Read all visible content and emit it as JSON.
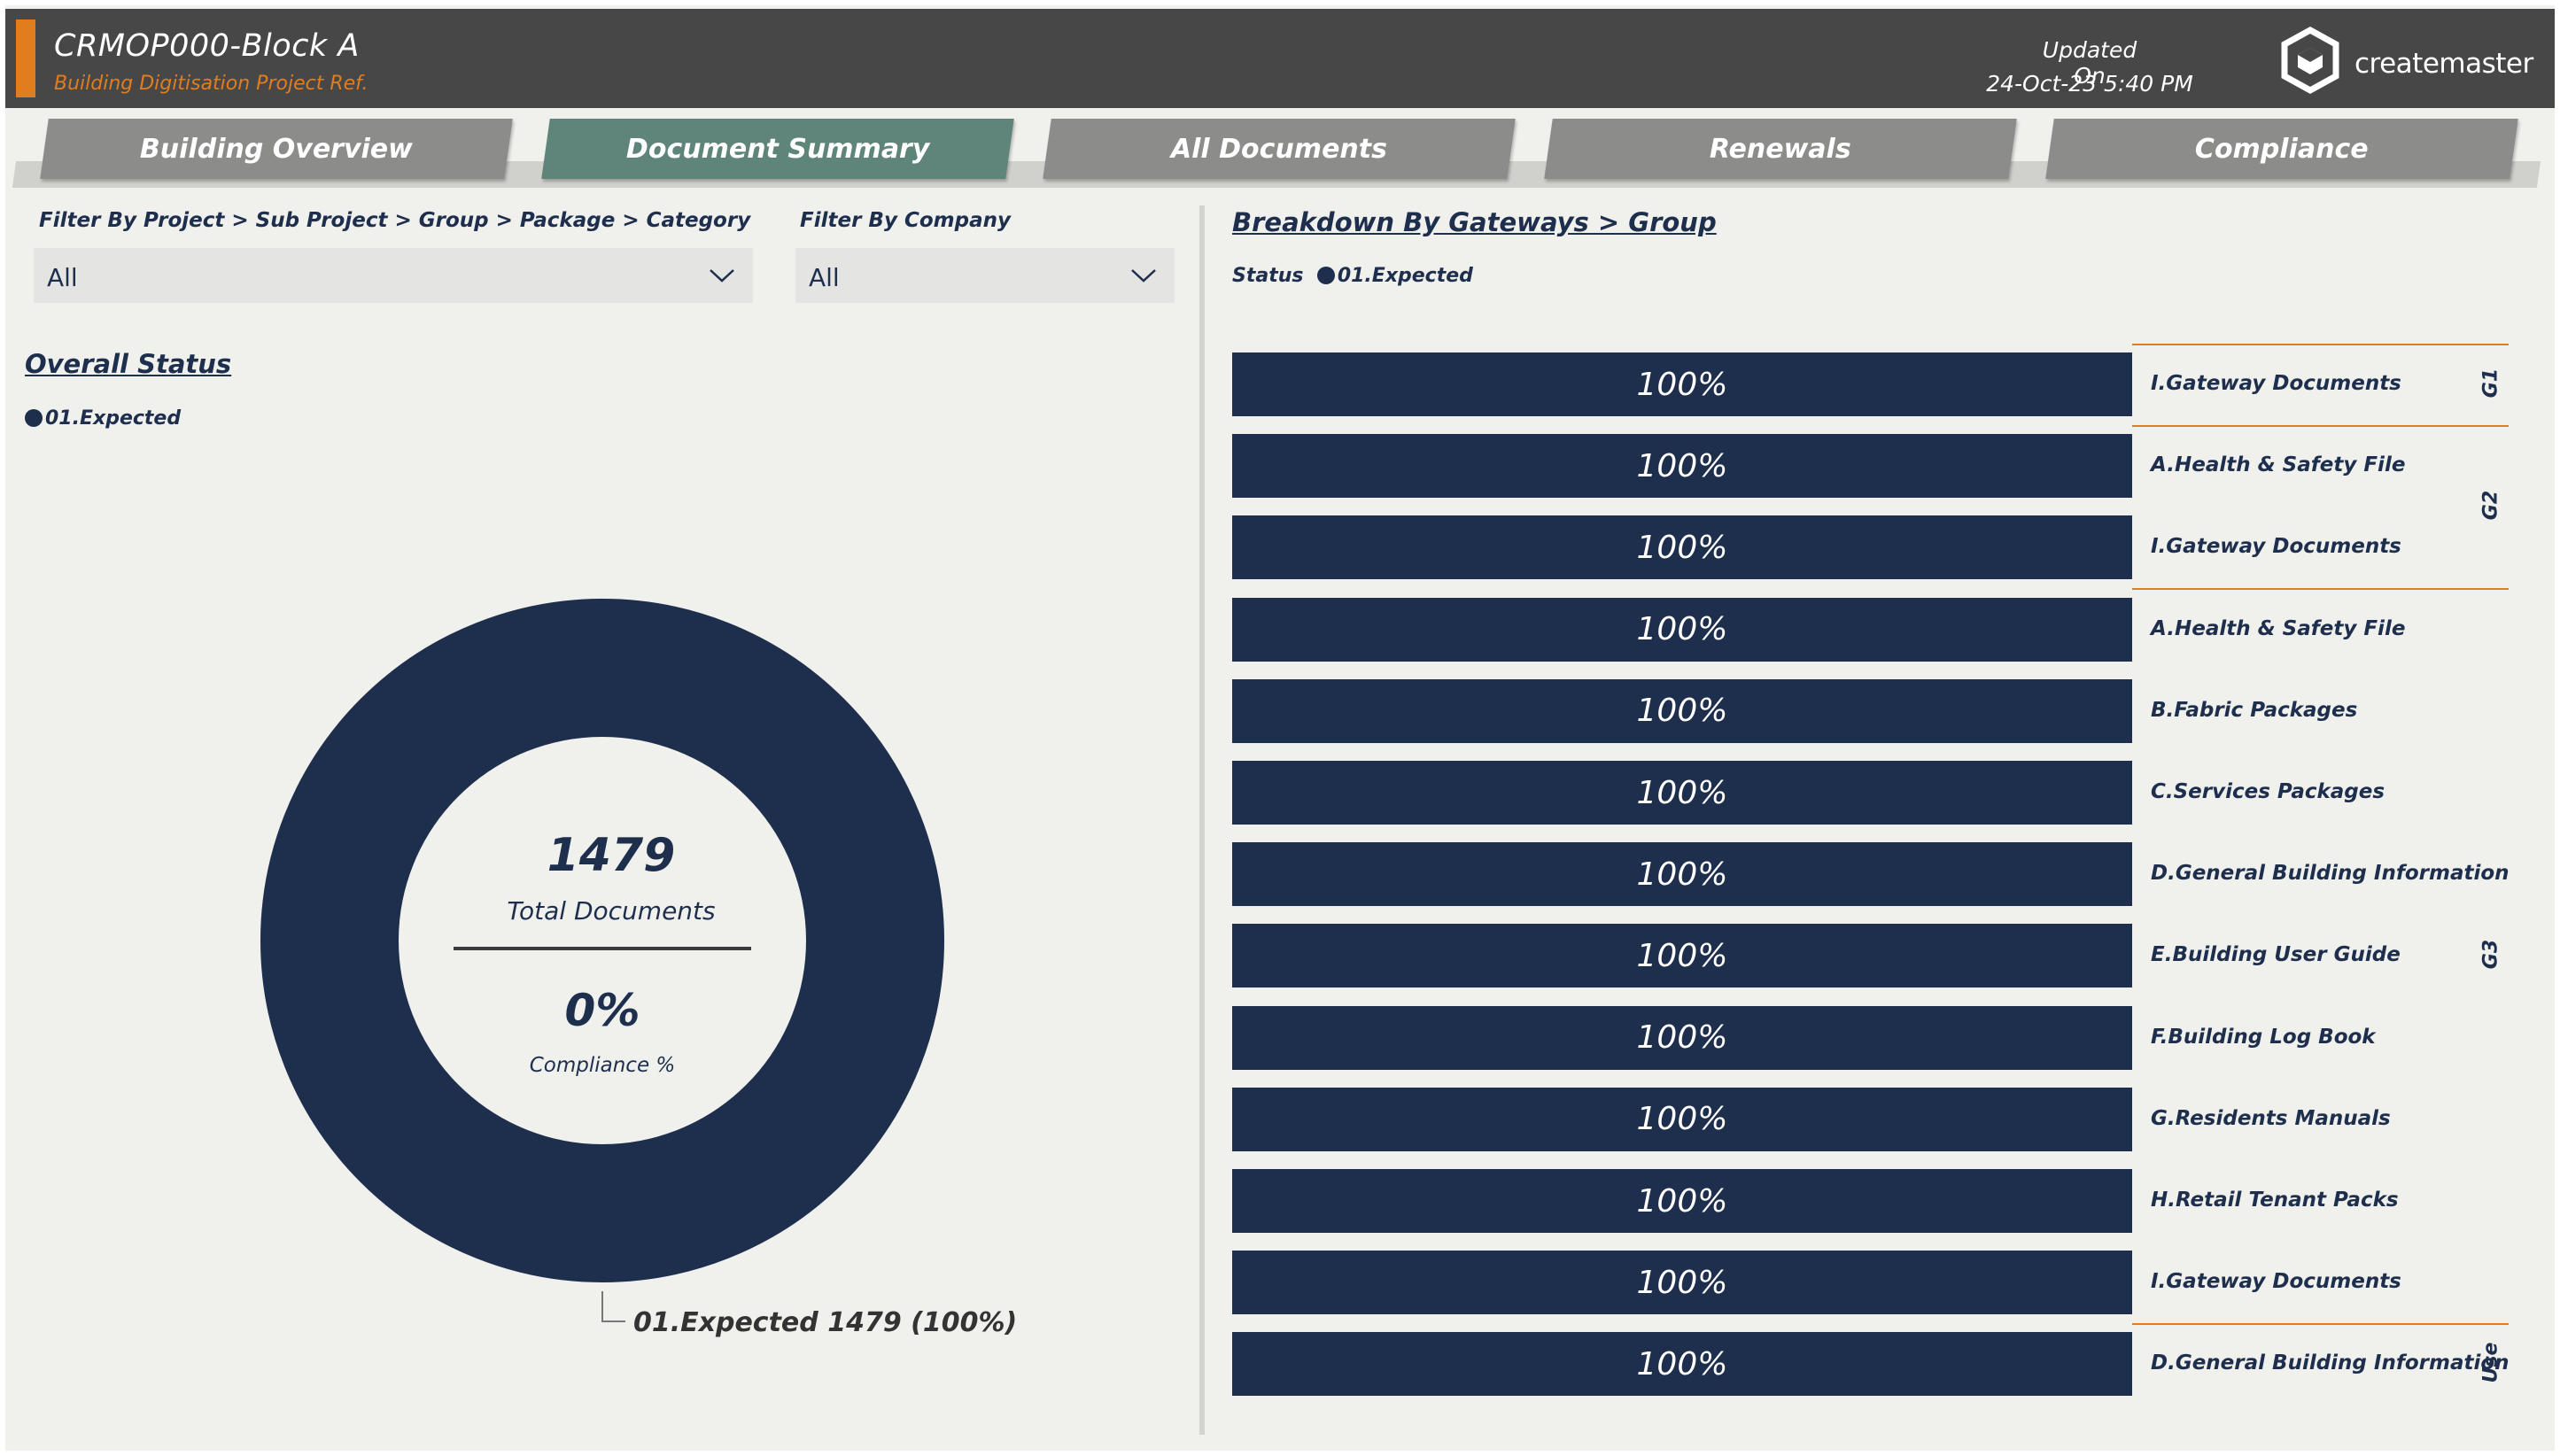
{
  "header": {
    "title": "CRMOP000-Block A",
    "subtitle": "Building Digitisation Project Ref.",
    "updated_label": "Updated On",
    "updated_value": "24-Oct-23 5:40 PM",
    "brand_light": "create",
    "brand_bold": "master",
    "colors": {
      "header_bg": "#474747",
      "accent": "#e07d1f"
    }
  },
  "tabs": [
    {
      "label": "Building Overview",
      "active": false
    },
    {
      "label": "Document Summary",
      "active": true
    },
    {
      "label": "All Documents",
      "active": false
    },
    {
      "label": "Renewals",
      "active": false
    },
    {
      "label": "Compliance",
      "active": false
    }
  ],
  "filters": {
    "project": {
      "label": "Filter By Project > Sub Project > Group > Package > Category",
      "value": "All"
    },
    "company": {
      "label": "Filter By Company",
      "value": "All"
    }
  },
  "overall_status": {
    "heading": "Overall Status",
    "legend_item": "01.Expected",
    "total": "1479",
    "total_label": "Total Documents",
    "compliance": "0%",
    "compliance_label": "Compliance %",
    "callout": "01.Expected 1479 (100%)",
    "color": "#1e2e4d"
  },
  "breakdown": {
    "heading": "Breakdown By Gateways > Group",
    "legend_title": "Status",
    "legend_item": "01.Expected",
    "groups": [
      "G1",
      "G2",
      "G3",
      "Use"
    ]
  },
  "chart_data": [
    {
      "type": "pie",
      "title": "Overall Status",
      "labels": [
        "01.Expected"
      ],
      "values": [
        1479
      ],
      "percent": [
        100
      ]
    },
    {
      "type": "bar",
      "title": "Breakdown By Gateways > Group",
      "orientation": "horizontal",
      "stacked": true,
      "categories": [
        "I.Gateway Documents",
        "A.Health & Safety File",
        "I.Gateway Documents",
        "A.Health & Safety File",
        "B.Fabric Packages",
        "C.Services Packages",
        "D.General Building Information",
        "E.Building User Guide",
        "F.Building Log Book",
        "G.Residents Manuals",
        "H.Retail Tenant Packs",
        "I.Gateway Documents",
        "D.General Building Information"
      ],
      "category_groups": [
        "G1",
        "G2",
        "G2",
        "G3",
        "G3",
        "G3",
        "G3",
        "G3",
        "G3",
        "G3",
        "G3",
        "G3",
        "Use"
      ],
      "series": [
        {
          "name": "01.Expected",
          "values": [
            100,
            100,
            100,
            100,
            100,
            100,
            100,
            100,
            100,
            100,
            100,
            100,
            100
          ],
          "labels": [
            "100%",
            "100%",
            "100%",
            "100%",
            "100%",
            "100%",
            "100%",
            "100%",
            "100%",
            "100%",
            "100%",
            "100%",
            "100%"
          ]
        }
      ],
      "xlim": [
        0,
        100
      ]
    }
  ]
}
